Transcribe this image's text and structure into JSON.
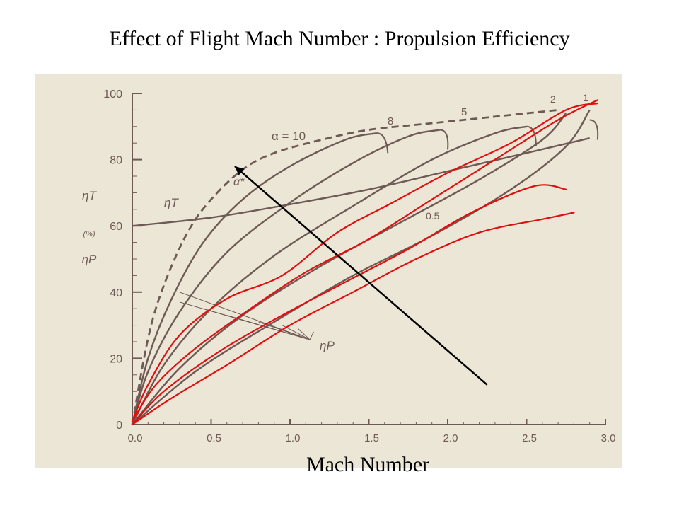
{
  "slide": {
    "title": "Effect of Flight Mach Number : Propulsion Efficiency",
    "xlabel": "Mach Number"
  },
  "chart_data": {
    "type": "line",
    "xlim": [
      0,
      3.0
    ],
    "ylim": [
      0,
      100
    ],
    "x_ticks": [
      "0.0",
      "0.5",
      "1.0",
      "1.5",
      "2.0",
      "2.5",
      "3.0"
    ],
    "y_ticks": [
      "0",
      "20",
      "40",
      "60",
      "80",
      "100"
    ],
    "y_axis_labels": [
      "ηT",
      "(%)",
      "ηP"
    ],
    "annotations": {
      "eta_t": "ηT",
      "eta_p": "ηP",
      "alpha_star": "α*",
      "alpha_10": "α = 10",
      "alpha_8": "8",
      "alpha_5": "5",
      "alpha_2": "2",
      "alpha_1": "1",
      "alpha_05": "0.5"
    },
    "colors": {
      "printed": "#6e5a55",
      "handdrawn": "#e01010",
      "arrow": "#000000",
      "background": "#ece6d6"
    },
    "series": [
      {
        "label_key": "eta_t",
        "style": "solid",
        "x": [
          0,
          0.5,
          1.0,
          1.5,
          2.0,
          2.5,
          2.9
        ],
        "y": [
          60,
          62.5,
          66.5,
          71,
          76.5,
          82,
          86.5
        ]
      },
      {
        "label_key": "alpha_star",
        "style": "dashed",
        "x": [
          0,
          0.1,
          0.2,
          0.35,
          0.5,
          0.7,
          0.9,
          1.2,
          1.5,
          1.9,
          2.3,
          2.7
        ],
        "y": [
          0,
          26,
          42,
          58,
          68,
          77,
          82,
          86,
          89,
          91,
          93,
          95
        ]
      },
      {
        "label_key": "alpha_10",
        "style": "solid",
        "x": [
          0,
          0.1,
          0.25,
          0.45,
          0.7,
          1.0,
          1.35,
          1.55
        ],
        "y": [
          0,
          20,
          38,
          55,
          68,
          78,
          86,
          88
        ]
      },
      {
        "label_key": "alpha_8",
        "style": "solid",
        "x": [
          0,
          0.1,
          0.3,
          0.6,
          1.0,
          1.4,
          1.75,
          1.95
        ],
        "y": [
          0,
          16,
          34,
          52,
          67,
          79,
          87,
          89
        ]
      },
      {
        "label_key": "alpha_5",
        "style": "solid",
        "x": [
          0,
          0.2,
          0.5,
          0.9,
          1.4,
          1.9,
          2.3,
          2.5
        ],
        "y": [
          0,
          18,
          35,
          51,
          66,
          80,
          88,
          90
        ]
      },
      {
        "label_key": "alpha_2",
        "style": "solid",
        "x": [
          0,
          0.3,
          0.7,
          1.2,
          1.7,
          2.2,
          2.6,
          2.75
        ],
        "y": [
          0,
          17,
          33,
          48,
          61,
          74,
          86,
          94
        ]
      },
      {
        "label_key": "alpha_1",
        "style": "solid",
        "x": [
          0,
          0.4,
          0.9,
          1.4,
          1.9,
          2.4,
          2.75,
          2.9
        ],
        "y": [
          0,
          16,
          31,
          45,
          57,
          71,
          84,
          95
        ]
      },
      {
        "label_key": "",
        "style": "red",
        "x": [
          0,
          0.1,
          0.3,
          0.6,
          0.95,
          1.3,
          1.65,
          2.0,
          2.4,
          2.75,
          2.95
        ],
        "y": [
          1,
          12,
          27,
          38,
          45,
          58,
          67,
          76,
          85,
          95,
          97
        ]
      },
      {
        "label_key": "",
        "style": "red",
        "x": [
          0,
          0.15,
          0.4,
          0.75,
          1.1,
          1.5,
          1.9,
          2.3,
          2.7,
          2.95
        ],
        "y": [
          1,
          12,
          23,
          35,
          46,
          56,
          68,
          80,
          92,
          98
        ]
      },
      {
        "label_key": "",
        "style": "red",
        "x": [
          0,
          0.2,
          0.55,
          0.95,
          1.35,
          1.75,
          2.15,
          2.55,
          2.75
        ],
        "y": [
          0,
          10,
          22,
          33,
          43,
          53,
          64,
          72,
          71
        ]
      },
      {
        "label_key": "",
        "style": "red",
        "x": [
          0,
          0.25,
          0.6,
          1.0,
          1.4,
          1.8,
          2.2,
          2.6,
          2.8
        ],
        "y": [
          0,
          8,
          18,
          30,
          40,
          50,
          58,
          62,
          64
        ]
      }
    ],
    "arrow": {
      "from": [
        2.25,
        12
      ],
      "to": [
        0.65,
        78
      ]
    }
  }
}
